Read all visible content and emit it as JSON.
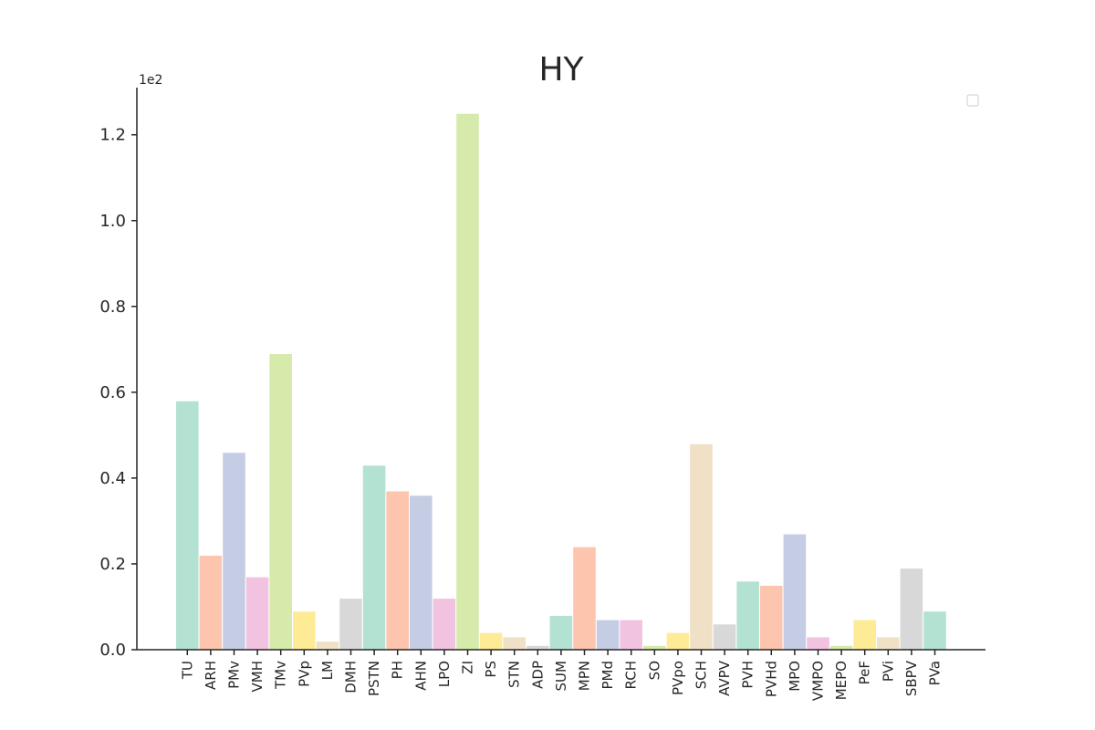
{
  "chart_data": {
    "type": "bar",
    "title": "HY",
    "xlabel": "",
    "ylabel": "",
    "y_offset_label": "1e2",
    "ylim": [
      0,
      1.31
    ],
    "yticks": [
      "0.0",
      "0.2",
      "0.4",
      "0.6",
      "0.8",
      "1.0",
      "1.2"
    ],
    "ytick_values": [
      0.0,
      0.2,
      0.4,
      0.6,
      0.8,
      1.0,
      1.2
    ],
    "grid": false,
    "legend": "top-right (empty box)",
    "categories": [
      "TU",
      "ARH",
      "PMv",
      "VMH",
      "TMv",
      "PVp",
      "LM",
      "DMH",
      "PSTN",
      "PH",
      "AHN",
      "LPO",
      "ZI",
      "PS",
      "STN",
      "ADP",
      "SUM",
      "MPN",
      "PMd",
      "RCH",
      "SO",
      "PVpo",
      "SCH",
      "AVPV",
      "PVH",
      "PVHd",
      "MPO",
      "VMPO",
      "MEPO",
      "PeF",
      "PVi",
      "SBPV",
      "PVa"
    ],
    "values": [
      0.58,
      0.22,
      0.46,
      0.17,
      0.69,
      0.09,
      0.02,
      0.12,
      0.43,
      0.37,
      0.36,
      0.12,
      1.25,
      0.04,
      0.03,
      0.01,
      0.08,
      0.24,
      0.07,
      0.07,
      0.01,
      0.04,
      0.48,
      0.06,
      0.16,
      0.15,
      0.27,
      0.03,
      0.01,
      0.07,
      0.03,
      0.19,
      0.09
    ],
    "palette": [
      "#b3e2d2",
      "#fdc4ae",
      "#c4cde3",
      "#f1c3e0",
      "#d5eaab",
      "#feeb95",
      "#f0e0c6",
      "#d8d8d8"
    ]
  }
}
